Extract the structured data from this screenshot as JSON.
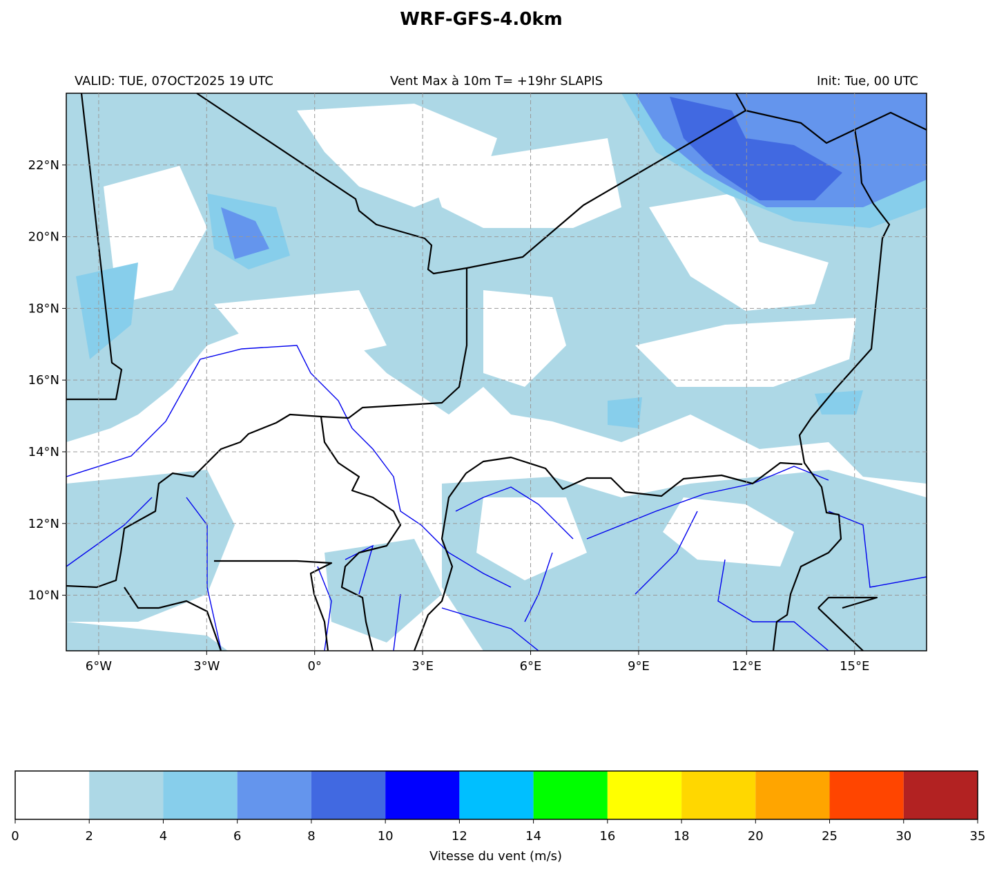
{
  "title": "WRF-GFS-4.0km",
  "subtitle_left": "VALID: TUE, 07OCT2025 19 UTC",
  "subtitle_center": "Vent Max à 10m T= +19hr SLAPIS",
  "subtitle_right": "Init: Tue, 00 UTC",
  "map": {
    "xlim": [
      -6.9,
      17
    ],
    "ylim": [
      8.45,
      24
    ],
    "xticks": [
      {
        "value": -6,
        "label": "6°W"
      },
      {
        "value": -3,
        "label": "3°W"
      },
      {
        "value": 0,
        "label": "0°"
      },
      {
        "value": 3,
        "label": "3°E"
      },
      {
        "value": 6,
        "label": "6°E"
      },
      {
        "value": 9,
        "label": "9°E"
      },
      {
        "value": 12,
        "label": "12°E"
      },
      {
        "value": 15,
        "label": "15°E"
      }
    ],
    "yticks": [
      {
        "value": 10,
        "label": "10°N"
      },
      {
        "value": 12,
        "label": "12°N"
      },
      {
        "value": 14,
        "label": "14°N"
      },
      {
        "value": 16,
        "label": "16°N"
      },
      {
        "value": 18,
        "label": "18°N"
      },
      {
        "value": 20,
        "label": "20°N"
      },
      {
        "value": 22,
        "label": "22°N"
      }
    ],
    "grid": true
  },
  "colorbar": {
    "boundaries": [
      0,
      2,
      4,
      6,
      8,
      10,
      12,
      14,
      16,
      18,
      20,
      25,
      30,
      35
    ],
    "colors": [
      "#ffffff",
      "#add8e6",
      "#87ceeb",
      "#6495ed",
      "#4169e1",
      "#0000ff",
      "#00bfff",
      "#00ff00",
      "#ffff00",
      "#ffd700",
      "#ffa500",
      "#ff4500",
      "#b22222"
    ],
    "label": "Vitesse du vent (m/s)"
  }
}
